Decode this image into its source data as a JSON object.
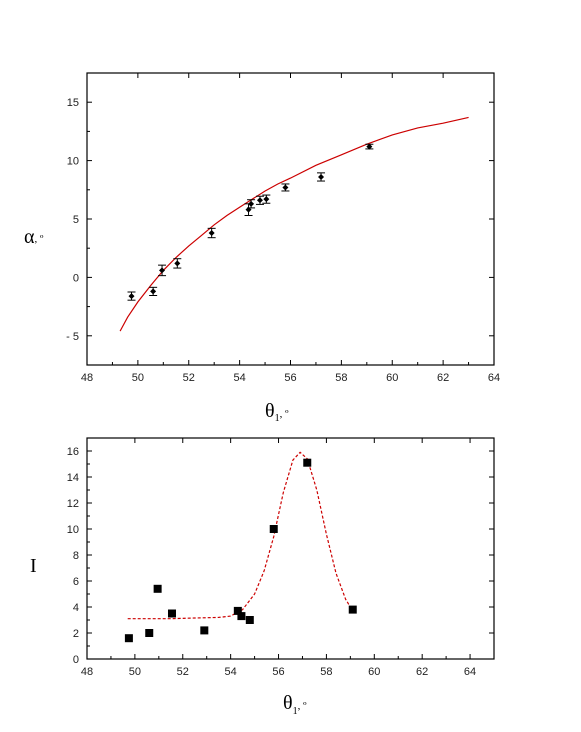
{
  "chart_data": [
    {
      "type": "scatter",
      "xlabel_symbol": "θ",
      "xlabel_subscript": "1",
      "xlabel_unit": ", º",
      "ylabel_symbol": "α",
      "ylabel_unit": ", º",
      "xlim": [
        48,
        64
      ],
      "ylim": [
        -7.5,
        17.5
      ],
      "xticks": [
        48,
        50,
        52,
        54,
        56,
        58,
        60,
        62,
        64
      ],
      "yticks": [
        -5,
        0,
        5,
        10,
        15
      ],
      "ytick_labels": [
        "- 5",
        "0",
        "5",
        "10",
        "15"
      ],
      "grid": false,
      "points": {
        "x": [
          49.75,
          50.6,
          50.95,
          51.55,
          52.9,
          54.35,
          54.45,
          54.8,
          55.05,
          55.8,
          57.2,
          59.1
        ],
        "y": [
          -1.6,
          -1.2,
          0.6,
          1.2,
          3.8,
          5.8,
          6.3,
          6.6,
          6.7,
          7.7,
          8.6,
          11.2
        ],
        "err": [
          0.35,
          0.35,
          0.45,
          0.4,
          0.4,
          0.5,
          0.35,
          0.35,
          0.35,
          0.3,
          0.35,
          0.2
        ]
      },
      "fit_line": {
        "color": "#cc0000",
        "x": [
          49.3,
          49.6,
          50.0,
          50.5,
          51.0,
          51.5,
          52.0,
          52.5,
          53.0,
          53.5,
          54.0,
          54.5,
          55.0,
          55.5,
          56.0,
          57.0,
          58.0,
          59.0,
          60.0,
          61.0,
          62.0,
          63.0
        ],
        "y": [
          -4.6,
          -3.4,
          -2.1,
          -0.7,
          0.6,
          1.7,
          2.7,
          3.6,
          4.5,
          5.3,
          6.0,
          6.7,
          7.4,
          8.0,
          8.5,
          9.6,
          10.5,
          11.4,
          12.2,
          12.8,
          13.2,
          13.7
        ]
      }
    },
    {
      "type": "scatter",
      "xlabel_symbol": "θ",
      "xlabel_subscript": "1",
      "xlabel_unit": ", º",
      "ylabel": "I",
      "xlim": [
        48,
        65
      ],
      "ylim": [
        0,
        17
      ],
      "xticks": [
        48,
        50,
        52,
        54,
        56,
        58,
        60,
        62,
        64
      ],
      "yticks": [
        0,
        2,
        4,
        6,
        8,
        10,
        12,
        14,
        16
      ],
      "grid": false,
      "points": {
        "x": [
          49.75,
          50.6,
          50.95,
          51.55,
          52.9,
          54.3,
          54.45,
          54.8,
          55.8,
          57.2,
          59.1
        ],
        "y": [
          1.6,
          2.0,
          5.4,
          3.5,
          2.2,
          3.7,
          3.3,
          3.0,
          10.0,
          15.1,
          3.8
        ]
      },
      "fit_line": {
        "color": "#cc0000",
        "style": "dashed",
        "x": [
          49.7,
          50.5,
          51.5,
          52.5,
          53.5,
          54.0,
          54.5,
          55.0,
          55.4,
          55.8,
          56.2,
          56.6,
          56.9,
          57.2,
          57.6,
          58.0,
          58.4,
          58.8,
          59.1
        ],
        "y": [
          3.1,
          3.1,
          3.1,
          3.15,
          3.2,
          3.3,
          3.8,
          5.0,
          6.8,
          9.4,
          12.8,
          15.3,
          15.9,
          15.4,
          13.0,
          9.6,
          6.6,
          4.6,
          3.7
        ]
      }
    }
  ]
}
